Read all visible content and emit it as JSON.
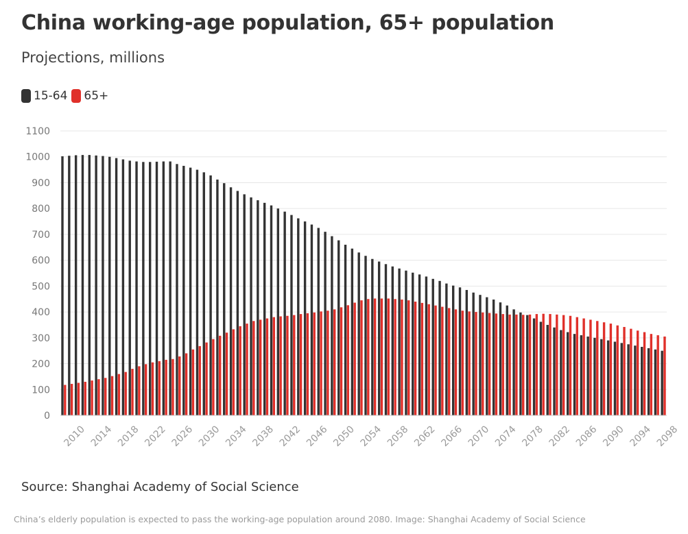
{
  "title": "China working-age population, 65+ population",
  "subtitle": "Projections, millions",
  "legend": [
    {
      "label": "15-64",
      "color": "#333333"
    },
    {
      "label": "65+",
      "color": "#e0302a"
    }
  ],
  "source": "Source: Shanghai Academy of Social Science",
  "caption": "China’s elderly population is expected to pass the working-age population around 2080. Image: Shanghai Academy of Social Science",
  "chart_data": {
    "type": "bar",
    "x": [
      2010,
      2011,
      2012,
      2013,
      2014,
      2015,
      2016,
      2017,
      2018,
      2019,
      2020,
      2021,
      2022,
      2023,
      2024,
      2025,
      2026,
      2027,
      2028,
      2029,
      2030,
      2031,
      2032,
      2033,
      2034,
      2035,
      2036,
      2037,
      2038,
      2039,
      2040,
      2041,
      2042,
      2043,
      2044,
      2045,
      2046,
      2047,
      2048,
      2049,
      2050,
      2051,
      2052,
      2053,
      2054,
      2055,
      2056,
      2057,
      2058,
      2059,
      2060,
      2061,
      2062,
      2063,
      2064,
      2065,
      2066,
      2067,
      2068,
      2069,
      2070,
      2071,
      2072,
      2073,
      2074,
      2075,
      2076,
      2077,
      2078,
      2079,
      2080,
      2081,
      2082,
      2083,
      2084,
      2085,
      2086,
      2087,
      2088,
      2089,
      2090,
      2091,
      2092,
      2093,
      2094,
      2095,
      2096,
      2097,
      2098,
      2099
    ],
    "xticks": [
      "2010",
      "2014",
      "2018",
      "2022",
      "2026",
      "2030",
      "2034",
      "2038",
      "2042",
      "2046",
      "2050",
      "2054",
      "2058",
      "2062",
      "2066",
      "2070",
      "2074",
      "2078",
      "2082",
      "2086",
      "2090",
      "2094",
      "2098"
    ],
    "ylim": [
      0,
      1100
    ],
    "yticks": [
      0,
      100,
      200,
      300,
      400,
      500,
      600,
      700,
      800,
      900,
      1000,
      1100
    ],
    "grid": true,
    "legend_position": "top-left",
    "series": [
      {
        "name": "15-64",
        "color": "#333333",
        "values": [
          1002,
          1004,
          1006,
          1007,
          1007,
          1005,
          1003,
          1000,
          995,
          990,
          985,
          982,
          980,
          980,
          981,
          982,
          982,
          972,
          965,
          958,
          950,
          940,
          928,
          912,
          898,
          882,
          868,
          855,
          843,
          832,
          822,
          812,
          800,
          788,
          775,
          762,
          750,
          738,
          725,
          710,
          693,
          677,
          660,
          645,
          630,
          617,
          605,
          595,
          585,
          576,
          568,
          560,
          552,
          545,
          537,
          528,
          520,
          510,
          502,
          495,
          485,
          475,
          466,
          457,
          448,
          437,
          425,
          410,
          398,
          388,
          375,
          362,
          350,
          340,
          330,
          322,
          315,
          310,
          305,
          300,
          295,
          290,
          285,
          280,
          275,
          270,
          265,
          260,
          255,
          250
        ]
      },
      {
        "name": "65+",
        "color": "#e0302a",
        "values": [
          118,
          122,
          126,
          130,
          135,
          140,
          145,
          152,
          160,
          168,
          180,
          190,
          198,
          205,
          210,
          215,
          218,
          228,
          240,
          255,
          268,
          282,
          295,
          308,
          320,
          333,
          345,
          355,
          365,
          370,
          375,
          380,
          383,
          385,
          388,
          392,
          395,
          398,
          402,
          405,
          410,
          418,
          426,
          436,
          445,
          450,
          452,
          452,
          452,
          450,
          448,
          445,
          440,
          435,
          430,
          425,
          420,
          415,
          410,
          405,
          402,
          400,
          398,
          396,
          394,
          392,
          390,
          390,
          389,
          390,
          392,
          393,
          392,
          390,
          388,
          385,
          380,
          375,
          370,
          365,
          360,
          355,
          348,
          342,
          335,
          328,
          322,
          315,
          310,
          305
        ]
      }
    ]
  }
}
